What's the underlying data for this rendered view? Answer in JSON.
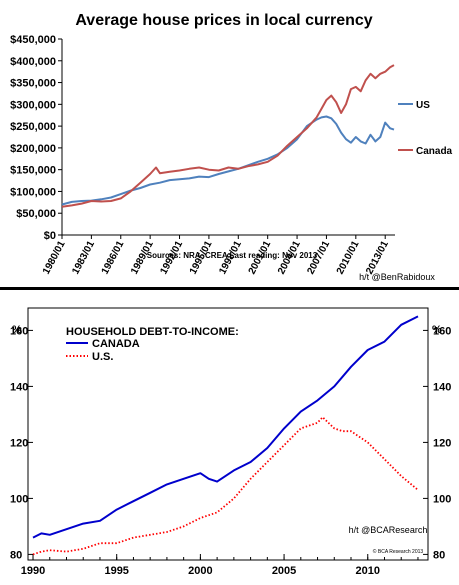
{
  "chart_data": [
    {
      "type": "line",
      "title": "Average house prices in local currency",
      "source": "Sources: NRA, CREA    Last reading: Nov 2013",
      "credit": "h/t @BenRabidoux",
      "xlim": [
        1980.0,
        2014.0
      ],
      "ylim": [
        0,
        450000
      ],
      "x_ticks": [
        1980,
        1983,
        1986,
        1989,
        1992,
        1995,
        1998,
        2001,
        2004,
        2007,
        2010,
        2013
      ],
      "x_tick_labels": [
        "1980/01",
        "1983/01",
        "1986/01",
        "1989/01",
        "1992/01",
        "1995/01",
        "1998/01",
        "2001/01",
        "2004/01",
        "2007/01",
        "2010/01",
        "2013/01"
      ],
      "y_ticks": [
        0,
        50000,
        100000,
        150000,
        200000,
        250000,
        300000,
        350000,
        400000,
        450000
      ],
      "y_tick_labels": [
        "$0",
        "$50,000",
        "$100,000",
        "$150,000",
        "$200,000",
        "$250,000",
        "$300,000",
        "$350,000",
        "$400,000",
        "$450,000"
      ],
      "grid": false,
      "legend": "right",
      "series": [
        {
          "name": "US",
          "color": "#4f81bd",
          "points": [
            [
              1980,
              70000
            ],
            [
              1981,
              76000
            ],
            [
              1982,
              78000
            ],
            [
              1983,
              79000
            ],
            [
              1984,
              82000
            ],
            [
              1985,
              86000
            ],
            [
              1986,
              94000
            ],
            [
              1987,
              102000
            ],
            [
              1988,
              108000
            ],
            [
              1989,
              116000
            ],
            [
              1990,
              120000
            ],
            [
              1991,
              126000
            ],
            [
              1992,
              128000
            ],
            [
              1993,
              130000
            ],
            [
              1994,
              134000
            ],
            [
              1995,
              133000
            ],
            [
              1996,
              140000
            ],
            [
              1997,
              146000
            ],
            [
              1998,
              152000
            ],
            [
              1999,
              160000
            ],
            [
              2000,
              168000
            ],
            [
              2001,
              175000
            ],
            [
              2002,
              185000
            ],
            [
              2003,
              200000
            ],
            [
              2004,
              220000
            ],
            [
              2005,
              250000
            ],
            [
              2006,
              265000
            ],
            [
              2006.5,
              270000
            ],
            [
              2007,
              272000
            ],
            [
              2007.5,
              268000
            ],
            [
              2008,
              255000
            ],
            [
              2008.5,
              235000
            ],
            [
              2009,
              220000
            ],
            [
              2009.5,
              212000
            ],
            [
              2010,
              225000
            ],
            [
              2010.5,
              215000
            ],
            [
              2011,
              210000
            ],
            [
              2011.5,
              230000
            ],
            [
              2012,
              215000
            ],
            [
              2012.5,
              225000
            ],
            [
              2013,
              258000
            ],
            [
              2013.5,
              245000
            ],
            [
              2013.9,
              242000
            ]
          ]
        },
        {
          "name": "Canada",
          "color": "#c0504d",
          "points": [
            [
              1980,
              65000
            ],
            [
              1981,
              68000
            ],
            [
              1982,
              72000
            ],
            [
              1983,
              78000
            ],
            [
              1984,
              77000
            ],
            [
              1985,
              78000
            ],
            [
              1986,
              84000
            ],
            [
              1987,
              100000
            ],
            [
              1988,
              120000
            ],
            [
              1989,
              140000
            ],
            [
              1989.6,
              155000
            ],
            [
              1990,
              142000
            ],
            [
              1991,
              145000
            ],
            [
              1992,
              148000
            ],
            [
              1993,
              152000
            ],
            [
              1994,
              155000
            ],
            [
              1995,
              150000
            ],
            [
              1996,
              148000
            ],
            [
              1997,
              155000
            ],
            [
              1998,
              152000
            ],
            [
              1999,
              158000
            ],
            [
              2000,
              162000
            ],
            [
              2001,
              168000
            ],
            [
              2002,
              182000
            ],
            [
              2003,
              205000
            ],
            [
              2004,
              225000
            ],
            [
              2005,
              245000
            ],
            [
              2006,
              270000
            ],
            [
              2006.5,
              290000
            ],
            [
              2007,
              310000
            ],
            [
              2007.5,
              320000
            ],
            [
              2008,
              305000
            ],
            [
              2008.5,
              280000
            ],
            [
              2009,
              300000
            ],
            [
              2009.5,
              335000
            ],
            [
              2010,
              340000
            ],
            [
              2010.5,
              330000
            ],
            [
              2011,
              355000
            ],
            [
              2011.5,
              370000
            ],
            [
              2012,
              360000
            ],
            [
              2012.5,
              370000
            ],
            [
              2013,
              375000
            ],
            [
              2013.5,
              385000
            ],
            [
              2013.9,
              390000
            ]
          ]
        }
      ]
    },
    {
      "type": "line",
      "title": "",
      "legend_title": "HOUSEHOLD DEBT-TO-INCOME:",
      "credit": "h/t @BCAResearch",
      "copyright": "© BCA Research 2013",
      "y_unit_left": "%",
      "y_unit_right": "%",
      "xlim": [
        1989.7,
        2013.6
      ],
      "ylim": [
        78,
        168
      ],
      "x_ticks": [
        1990,
        1995,
        2000,
        2005,
        2010
      ],
      "x_tick_labels": [
        "1990",
        "1995",
        "2000",
        "2005",
        "2010"
      ],
      "y_ticks": [
        80,
        100,
        120,
        140,
        160
      ],
      "y_tick_labels": [
        "80",
        "100",
        "120",
        "140",
        "160"
      ],
      "grid": false,
      "legend": "top-left",
      "series": [
        {
          "name": "CANADA",
          "color": "#0000cc",
          "style": "solid",
          "points": [
            [
              1990,
              86
            ],
            [
              1990.5,
              87.5
            ],
            [
              1991,
              87
            ],
            [
              1992,
              89
            ],
            [
              1993,
              91
            ],
            [
              1994,
              92
            ],
            [
              1995,
              96
            ],
            [
              1996,
              99
            ],
            [
              1997,
              102
            ],
            [
              1998,
              105
            ],
            [
              1999,
              107
            ],
            [
              2000,
              109
            ],
            [
              2000.5,
              107
            ],
            [
              2001,
              106
            ],
            [
              2002,
              110
            ],
            [
              2003,
              113
            ],
            [
              2004,
              118
            ],
            [
              2005,
              125
            ],
            [
              2006,
              131
            ],
            [
              2007,
              135
            ],
            [
              2008,
              140
            ],
            [
              2009,
              147
            ],
            [
              2010,
              153
            ],
            [
              2011,
              156
            ],
            [
              2012,
              162
            ],
            [
              2013,
              165
            ]
          ]
        },
        {
          "name": "U.S.",
          "color": "#ff0000",
          "style": "dotted",
          "points": [
            [
              1990,
              80
            ],
            [
              1990.5,
              81
            ],
            [
              1991,
              81.5
            ],
            [
              1992,
              81
            ],
            [
              1993,
              82
            ],
            [
              1994,
              84
            ],
            [
              1995,
              84
            ],
            [
              1996,
              86
            ],
            [
              1997,
              87
            ],
            [
              1998,
              88
            ],
            [
              1999,
              90
            ],
            [
              2000,
              93
            ],
            [
              2001,
              95
            ],
            [
              2002,
              100
            ],
            [
              2003,
              107
            ],
            [
              2004,
              113
            ],
            [
              2005,
              119
            ],
            [
              2006,
              125
            ],
            [
              2007,
              127
            ],
            [
              2007.3,
              129
            ],
            [
              2008,
              125
            ],
            [
              2008.5,
              124
            ],
            [
              2009,
              124
            ],
            [
              2010,
              120
            ],
            [
              2011,
              114
            ],
            [
              2012,
              108
            ],
            [
              2013,
              103
            ]
          ]
        }
      ]
    }
  ]
}
